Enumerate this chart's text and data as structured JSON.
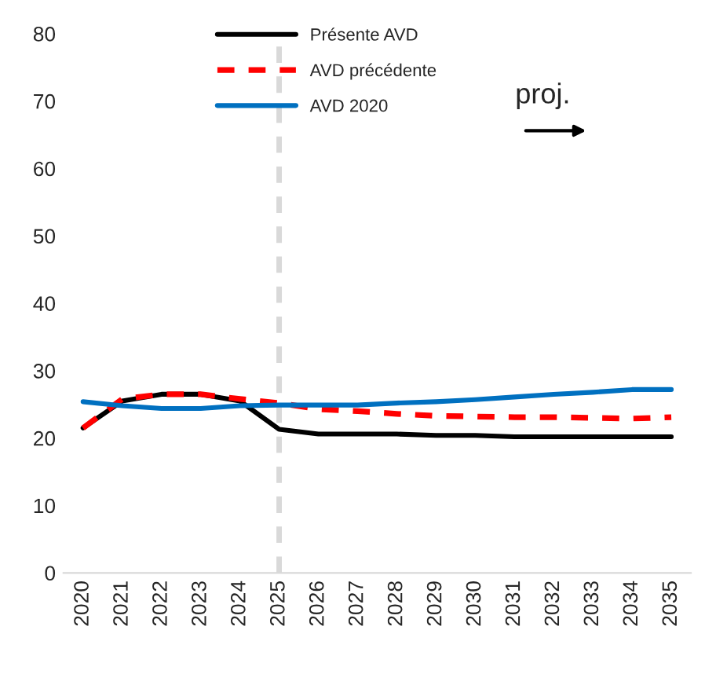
{
  "chart_data": {
    "type": "line",
    "categories": [
      "2020",
      "2021",
      "2022",
      "2023",
      "2024",
      "2025",
      "2026",
      "2027",
      "2028",
      "2029",
      "2030",
      "2031",
      "2032",
      "2033",
      "2034",
      "2035"
    ],
    "series": [
      {
        "name": "Présente AVD",
        "color": "#000000",
        "line_style": "solid",
        "values": [
          21.5,
          25.5,
          26.5,
          26.5,
          25.5,
          21.3,
          20.6,
          20.6,
          20.6,
          20.4,
          20.4,
          20.2,
          20.2,
          20.2,
          20.2,
          20.2
        ]
      },
      {
        "name": "AVD précédente",
        "color": "#ff0000",
        "line_style": "dashed",
        "values": [
          21.5,
          25.8,
          26.5,
          26.5,
          25.8,
          25.2,
          24.3,
          24.0,
          23.6,
          23.3,
          23.2,
          23.1,
          23.1,
          23.0,
          22.9,
          23.1
        ]
      },
      {
        "name": "AVD 2020",
        "color": "#0070c0",
        "line_style": "solid",
        "values": [
          25.4,
          24.8,
          24.4,
          24.4,
          24.8,
          24.9,
          24.9,
          24.9,
          25.2,
          25.4,
          25.7,
          26.1,
          26.5,
          26.8,
          27.2,
          27.2
        ]
      }
    ],
    "ylim": [
      0,
      80
    ],
    "yticks": [
      0,
      10,
      20,
      30,
      40,
      50,
      60,
      70,
      80
    ],
    "ref_lines": [
      {
        "axis": "x",
        "value": "2025",
        "color": "#d9d9d9",
        "line_style": "dashed"
      }
    ],
    "annotations": [
      "proj."
    ],
    "legend": "top",
    "grid": false,
    "marker": "none"
  }
}
